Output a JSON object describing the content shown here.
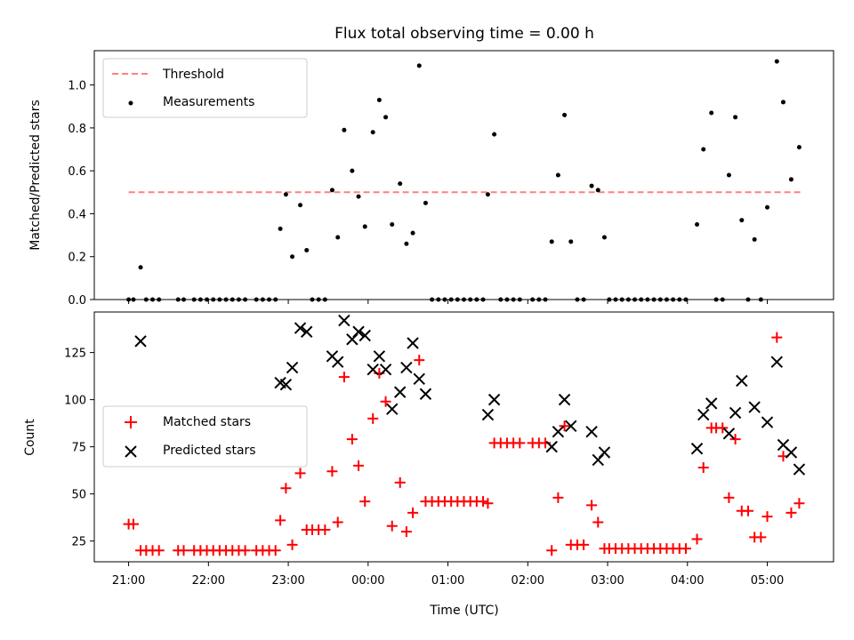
{
  "chart_data": {
    "type": "scatter",
    "title": "Flux total observing time = 0.00 h",
    "xlabel": "Time (UTC)",
    "x_unit": "hours after 21:00 UTC",
    "xlim": [
      -0.43,
      8.83
    ],
    "x_ticks": [
      {
        "value": 0,
        "label": "21:00"
      },
      {
        "value": 1,
        "label": "22:00"
      },
      {
        "value": 2,
        "label": "23:00"
      },
      {
        "value": 3,
        "label": "00:00"
      },
      {
        "value": 4,
        "label": "01:00"
      },
      {
        "value": 5,
        "label": "02:00"
      },
      {
        "value": 6,
        "label": "03:00"
      },
      {
        "value": 7,
        "label": "04:00"
      },
      {
        "value": 8,
        "label": "05:00"
      }
    ],
    "top_panel": {
      "ylabel": "Matched/Predicted stars",
      "ylim": [
        0,
        1.16
      ],
      "y_ticks": [
        "0.0",
        "0.2",
        "0.4",
        "0.6",
        "0.8",
        "1.0"
      ],
      "legend": {
        "position": "upper left",
        "threshold": "Threshold",
        "measurements": "Measurements"
      },
      "threshold": {
        "value": 0.5,
        "x_start": 0,
        "x_end": 8.42,
        "color": "#ff8080"
      },
      "measurements": [
        [
          0.0,
          0
        ],
        [
          0.06,
          0
        ],
        [
          0.15,
          0.15
        ],
        [
          0.22,
          0
        ],
        [
          0.3,
          0
        ],
        [
          0.38,
          0
        ],
        [
          0.62,
          0
        ],
        [
          0.69,
          0
        ],
        [
          0.82,
          0
        ],
        [
          0.9,
          0
        ],
        [
          0.98,
          0
        ],
        [
          1.06,
          0
        ],
        [
          1.14,
          0
        ],
        [
          1.22,
          0
        ],
        [
          1.3,
          0
        ],
        [
          1.38,
          0
        ],
        [
          1.46,
          0
        ],
        [
          1.6,
          0
        ],
        [
          1.68,
          0
        ],
        [
          1.76,
          0
        ],
        [
          1.84,
          0
        ],
        [
          1.9,
          0.33
        ],
        [
          1.97,
          0.49
        ],
        [
          2.05,
          0.2
        ],
        [
          2.15,
          0.44
        ],
        [
          2.23,
          0.23
        ],
        [
          2.3,
          0
        ],
        [
          2.38,
          0
        ],
        [
          2.46,
          0
        ],
        [
          2.55,
          0.51
        ],
        [
          2.62,
          0.29
        ],
        [
          2.7,
          0.79
        ],
        [
          2.8,
          0.6
        ],
        [
          2.88,
          0.48
        ],
        [
          2.96,
          0.34
        ],
        [
          3.06,
          0.78
        ],
        [
          3.14,
          0.93
        ],
        [
          3.22,
          0.85
        ],
        [
          3.3,
          0.35
        ],
        [
          3.4,
          0.54
        ],
        [
          3.48,
          0.26
        ],
        [
          3.56,
          0.31
        ],
        [
          3.64,
          1.09
        ],
        [
          3.72,
          0.45
        ],
        [
          3.8,
          0
        ],
        [
          3.88,
          0
        ],
        [
          3.96,
          0
        ],
        [
          4.04,
          0
        ],
        [
          4.12,
          0
        ],
        [
          4.2,
          0
        ],
        [
          4.28,
          0
        ],
        [
          4.36,
          0
        ],
        [
          4.44,
          0
        ],
        [
          4.5,
          0.49
        ],
        [
          4.58,
          0.77
        ],
        [
          4.66,
          0
        ],
        [
          4.74,
          0
        ],
        [
          4.82,
          0
        ],
        [
          4.9,
          0
        ],
        [
          5.06,
          0
        ],
        [
          5.14,
          0
        ],
        [
          5.22,
          0
        ],
        [
          5.3,
          0.27
        ],
        [
          5.38,
          0.58
        ],
        [
          5.46,
          0.86
        ],
        [
          5.54,
          0.27
        ],
        [
          5.62,
          0
        ],
        [
          5.7,
          0
        ],
        [
          5.8,
          0.53
        ],
        [
          5.88,
          0.51
        ],
        [
          5.96,
          0.29
        ],
        [
          6.02,
          0
        ],
        [
          6.1,
          0
        ],
        [
          6.18,
          0
        ],
        [
          6.26,
          0
        ],
        [
          6.34,
          0
        ],
        [
          6.42,
          0
        ],
        [
          6.5,
          0
        ],
        [
          6.58,
          0
        ],
        [
          6.66,
          0
        ],
        [
          6.74,
          0
        ],
        [
          6.82,
          0
        ],
        [
          6.9,
          0
        ],
        [
          6.98,
          0
        ],
        [
          7.12,
          0.35
        ],
        [
          7.2,
          0.7
        ],
        [
          7.3,
          0.87
        ],
        [
          7.36,
          0
        ],
        [
          7.44,
          0
        ],
        [
          7.52,
          0.58
        ],
        [
          7.6,
          0.85
        ],
        [
          7.68,
          0.37
        ],
        [
          7.76,
          0
        ],
        [
          7.84,
          0.28
        ],
        [
          7.92,
          0
        ],
        [
          8.0,
          0.43
        ],
        [
          8.12,
          1.11
        ],
        [
          8.2,
          0.92
        ],
        [
          8.3,
          0.56
        ],
        [
          8.4,
          0.71
        ]
      ]
    },
    "bottom_panel": {
      "ylabel": "Count",
      "ylim": [
        14.0,
        146.5
      ],
      "y_ticks": [
        "25",
        "50",
        "75",
        "100",
        "125"
      ],
      "legend": {
        "position": "center left",
        "matched": "Matched stars",
        "predicted": "Predicted stars"
      },
      "matched_color": "#ff0000",
      "predicted_color": "#000000",
      "matched": [
        [
          0.0,
          34
        ],
        [
          0.06,
          34
        ],
        [
          0.15,
          20
        ],
        [
          0.22,
          20
        ],
        [
          0.3,
          20
        ],
        [
          0.38,
          20
        ],
        [
          0.62,
          20
        ],
        [
          0.69,
          20
        ],
        [
          0.82,
          20
        ],
        [
          0.9,
          20
        ],
        [
          0.98,
          20
        ],
        [
          1.06,
          20
        ],
        [
          1.14,
          20
        ],
        [
          1.22,
          20
        ],
        [
          1.3,
          20
        ],
        [
          1.38,
          20
        ],
        [
          1.46,
          20
        ],
        [
          1.6,
          20
        ],
        [
          1.68,
          20
        ],
        [
          1.76,
          20
        ],
        [
          1.84,
          20
        ],
        [
          1.9,
          36
        ],
        [
          1.97,
          53
        ],
        [
          2.05,
          23
        ],
        [
          2.15,
          61
        ],
        [
          2.23,
          31
        ],
        [
          2.3,
          31
        ],
        [
          2.38,
          31
        ],
        [
          2.46,
          31
        ],
        [
          2.55,
          62
        ],
        [
          2.62,
          35
        ],
        [
          2.7,
          112
        ],
        [
          2.8,
          79
        ],
        [
          2.88,
          65
        ],
        [
          2.96,
          46
        ],
        [
          3.06,
          90
        ],
        [
          3.14,
          114
        ],
        [
          3.22,
          99
        ],
        [
          3.3,
          33
        ],
        [
          3.4,
          56
        ],
        [
          3.48,
          30
        ],
        [
          3.56,
          40
        ],
        [
          3.64,
          121
        ],
        [
          3.72,
          46
        ],
        [
          3.8,
          46
        ],
        [
          3.88,
          46
        ],
        [
          3.96,
          46
        ],
        [
          4.04,
          46
        ],
        [
          4.12,
          46
        ],
        [
          4.2,
          46
        ],
        [
          4.28,
          46
        ],
        [
          4.36,
          46
        ],
        [
          4.44,
          46
        ],
        [
          4.5,
          45
        ],
        [
          4.58,
          77
        ],
        [
          4.66,
          77
        ],
        [
          4.74,
          77
        ],
        [
          4.82,
          77
        ],
        [
          4.9,
          77
        ],
        [
          5.06,
          77
        ],
        [
          5.14,
          77
        ],
        [
          5.22,
          77
        ],
        [
          5.3,
          20
        ],
        [
          5.38,
          48
        ],
        [
          5.46,
          86
        ],
        [
          5.54,
          23
        ],
        [
          5.62,
          23
        ],
        [
          5.7,
          23
        ],
        [
          5.8,
          44
        ],
        [
          5.88,
          35
        ],
        [
          5.96,
          21
        ],
        [
          6.02,
          21
        ],
        [
          6.1,
          21
        ],
        [
          6.18,
          21
        ],
        [
          6.26,
          21
        ],
        [
          6.34,
          21
        ],
        [
          6.42,
          21
        ],
        [
          6.5,
          21
        ],
        [
          6.58,
          21
        ],
        [
          6.66,
          21
        ],
        [
          6.74,
          21
        ],
        [
          6.82,
          21
        ],
        [
          6.9,
          21
        ],
        [
          6.98,
          21
        ],
        [
          7.12,
          26
        ],
        [
          7.2,
          64
        ],
        [
          7.3,
          85
        ],
        [
          7.36,
          85
        ],
        [
          7.44,
          85
        ],
        [
          7.52,
          48
        ],
        [
          7.6,
          79
        ],
        [
          7.68,
          41
        ],
        [
          7.76,
          41
        ],
        [
          7.84,
          27
        ],
        [
          7.92,
          27
        ],
        [
          8.0,
          38
        ],
        [
          8.12,
          133
        ],
        [
          8.2,
          70
        ],
        [
          8.3,
          40
        ],
        [
          8.4,
          45
        ]
      ],
      "predicted": [
        [
          0.15,
          131
        ],
        [
          1.9,
          109
        ],
        [
          1.97,
          108
        ],
        [
          2.05,
          117
        ],
        [
          2.15,
          138
        ],
        [
          2.23,
          136
        ],
        [
          2.55,
          123
        ],
        [
          2.62,
          120
        ],
        [
          2.7,
          142
        ],
        [
          2.8,
          132
        ],
        [
          2.88,
          136
        ],
        [
          2.96,
          134
        ],
        [
          3.06,
          116
        ],
        [
          3.14,
          123
        ],
        [
          3.22,
          116
        ],
        [
          3.3,
          95
        ],
        [
          3.4,
          104
        ],
        [
          3.48,
          117
        ],
        [
          3.56,
          130
        ],
        [
          3.64,
          111
        ],
        [
          3.72,
          103
        ],
        [
          4.5,
          92
        ],
        [
          4.58,
          100
        ],
        [
          5.3,
          75
        ],
        [
          5.38,
          83
        ],
        [
          5.46,
          100
        ],
        [
          5.54,
          86
        ],
        [
          5.8,
          83
        ],
        [
          5.88,
          68
        ],
        [
          5.96,
          72
        ],
        [
          7.12,
          74
        ],
        [
          7.2,
          92
        ],
        [
          7.3,
          98
        ],
        [
          7.52,
          82
        ],
        [
          7.6,
          93
        ],
        [
          7.68,
          110
        ],
        [
          7.84,
          96
        ],
        [
          8.0,
          88
        ],
        [
          8.12,
          120
        ],
        [
          8.2,
          76
        ],
        [
          8.3,
          72
        ],
        [
          8.4,
          63
        ]
      ]
    }
  }
}
